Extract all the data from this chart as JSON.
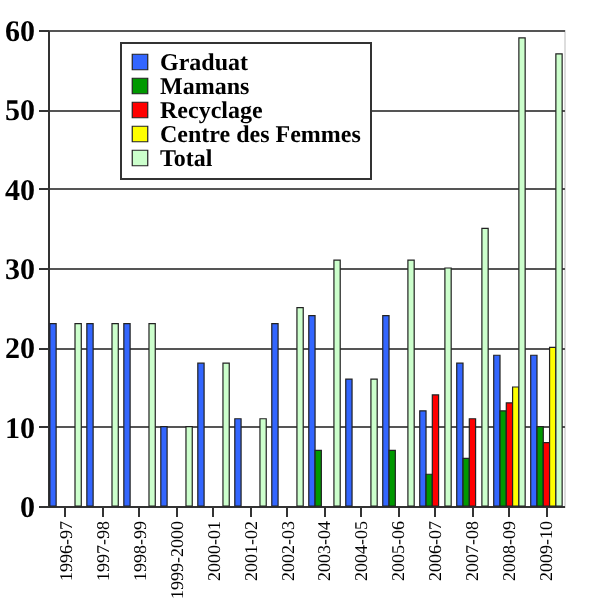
{
  "chart_data": {
    "type": "bar",
    "categories": [
      "1996-97",
      "1997-98",
      "1998-99",
      "1999-2000",
      "2000-01",
      "2001-02",
      "2002-03",
      "2003-04",
      "2004-05",
      "2005-06",
      "2006-07",
      "2007-08",
      "2008-09",
      "2009-10"
    ],
    "series": [
      {
        "name": "Graduat",
        "color": "#3366ff",
        "values": [
          23,
          23,
          23,
          10,
          18,
          11,
          23,
          24,
          16,
          24,
          12,
          18,
          19,
          19
        ]
      },
      {
        "name": "Mamans",
        "color": "#009900",
        "values": [
          null,
          null,
          null,
          null,
          null,
          null,
          null,
          7,
          null,
          7,
          4,
          6,
          12,
          10
        ]
      },
      {
        "name": "Recyclage",
        "color": "#ff0000",
        "values": [
          null,
          null,
          null,
          null,
          null,
          null,
          null,
          null,
          null,
          null,
          14,
          11,
          13,
          8
        ]
      },
      {
        "name": "Centre des Femmes",
        "color": "#ffff00",
        "values": [
          null,
          null,
          null,
          null,
          null,
          null,
          null,
          null,
          null,
          null,
          null,
          null,
          15,
          20
        ]
      },
      {
        "name": "Total",
        "color": "#ccffcc",
        "values": [
          23,
          23,
          23,
          10,
          18,
          11,
          25,
          31,
          16,
          31,
          30,
          35,
          59,
          57
        ]
      }
    ],
    "ylim": [
      0,
      60
    ],
    "yticks": [
      0,
      10,
      20,
      30,
      40,
      50,
      60
    ],
    "grid": "y",
    "legend": "top left"
  }
}
